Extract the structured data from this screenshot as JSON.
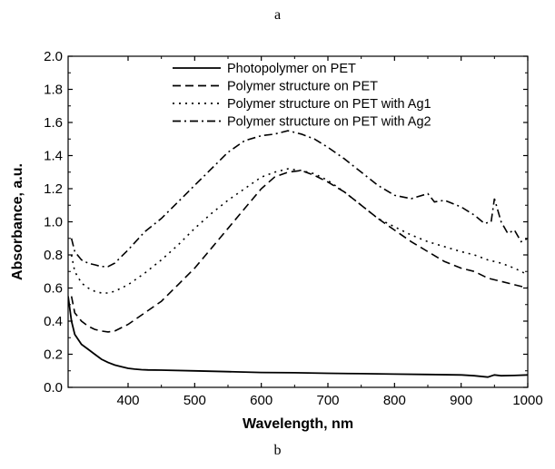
{
  "captions": {
    "top": "a",
    "bottom": "b"
  },
  "chart_data": {
    "type": "line",
    "title": "",
    "xlabel": "Wavelength, nm",
    "ylabel": "Absorbance, a.u.",
    "xlim": [
      310,
      1000
    ],
    "ylim": [
      0.0,
      2.0
    ],
    "xticks": [
      400,
      500,
      600,
      700,
      800,
      900,
      1000
    ],
    "yticks": [
      0.0,
      0.2,
      0.4,
      0.6,
      0.8,
      1.0,
      1.2,
      1.4,
      1.6,
      1.8,
      2.0
    ],
    "ytick_labels": [
      "0.0",
      "0.2",
      "0.4",
      "0.6",
      "0.8",
      "1.0",
      "1.2",
      "1.4",
      "1.6",
      "1.8",
      "2.0"
    ],
    "grid": false,
    "legend_position": "top-center",
    "series": [
      {
        "name": "Photopolymer on PET",
        "style": "solid",
        "color": "#000000",
        "x": [
          310,
          315,
          320,
          330,
          340,
          350,
          360,
          370,
          380,
          390,
          400,
          410,
          420,
          430,
          450,
          500,
          550,
          600,
          650,
          700,
          750,
          800,
          850,
          900,
          920,
          940,
          950,
          960,
          980,
          1000
        ],
        "y": [
          0.55,
          0.4,
          0.32,
          0.26,
          0.23,
          0.2,
          0.17,
          0.15,
          0.135,
          0.125,
          0.115,
          0.11,
          0.107,
          0.105,
          0.104,
          0.1,
          0.095,
          0.09,
          0.088,
          0.085,
          0.083,
          0.08,
          0.078,
          0.075,
          0.07,
          0.062,
          0.075,
          0.07,
          0.072,
          0.075
        ]
      },
      {
        "name": "Polymer structure on PET",
        "style": "dashed",
        "color": "#000000",
        "x": [
          315,
          320,
          330,
          340,
          350,
          360,
          370,
          380,
          400,
          425,
          450,
          475,
          500,
          525,
          550,
          575,
          600,
          620,
          640,
          660,
          680,
          700,
          725,
          750,
          775,
          800,
          825,
          850,
          875,
          900,
          920,
          940,
          960,
          980,
          1000
        ],
        "y": [
          0.55,
          0.45,
          0.4,
          0.37,
          0.35,
          0.34,
          0.335,
          0.34,
          0.38,
          0.45,
          0.52,
          0.62,
          0.72,
          0.84,
          0.96,
          1.08,
          1.2,
          1.27,
          1.3,
          1.31,
          1.28,
          1.24,
          1.18,
          1.1,
          1.02,
          0.95,
          0.88,
          0.82,
          0.76,
          0.72,
          0.7,
          0.66,
          0.64,
          0.62,
          0.6
        ]
      },
      {
        "name": "Polymer structure on PET with Ag1",
        "style": "dotted",
        "color": "#000000",
        "x": [
          315,
          320,
          330,
          340,
          350,
          360,
          370,
          380,
          400,
          425,
          450,
          475,
          500,
          525,
          550,
          575,
          600,
          620,
          640,
          660,
          680,
          700,
          725,
          750,
          775,
          800,
          825,
          850,
          875,
          900,
          920,
          940,
          960,
          980,
          1000
        ],
        "y": [
          0.8,
          0.7,
          0.63,
          0.6,
          0.58,
          0.57,
          0.57,
          0.58,
          0.62,
          0.69,
          0.77,
          0.86,
          0.96,
          1.05,
          1.13,
          1.2,
          1.27,
          1.3,
          1.32,
          1.31,
          1.29,
          1.25,
          1.18,
          1.1,
          1.02,
          0.97,
          0.92,
          0.88,
          0.85,
          0.82,
          0.8,
          0.77,
          0.75,
          0.72,
          0.68
        ]
      },
      {
        "name": "Polymer structure on PET with Ag2",
        "style": "dashdot",
        "color": "#000000",
        "x": [
          315,
          320,
          330,
          340,
          350,
          360,
          370,
          380,
          400,
          425,
          450,
          475,
          500,
          525,
          550,
          575,
          600,
          620,
          640,
          660,
          680,
          700,
          725,
          750,
          775,
          800,
          825,
          850,
          860,
          875,
          900,
          920,
          935,
          945,
          950,
          960,
          970,
          980,
          990,
          1000
        ],
        "y": [
          0.9,
          0.82,
          0.77,
          0.75,
          0.74,
          0.73,
          0.73,
          0.75,
          0.83,
          0.94,
          1.02,
          1.12,
          1.22,
          1.32,
          1.42,
          1.49,
          1.52,
          1.53,
          1.55,
          1.53,
          1.5,
          1.45,
          1.38,
          1.3,
          1.22,
          1.16,
          1.14,
          1.17,
          1.12,
          1.13,
          1.09,
          1.04,
          0.99,
          1.0,
          1.14,
          1.0,
          0.93,
          0.95,
          0.88,
          0.9
        ]
      }
    ]
  }
}
